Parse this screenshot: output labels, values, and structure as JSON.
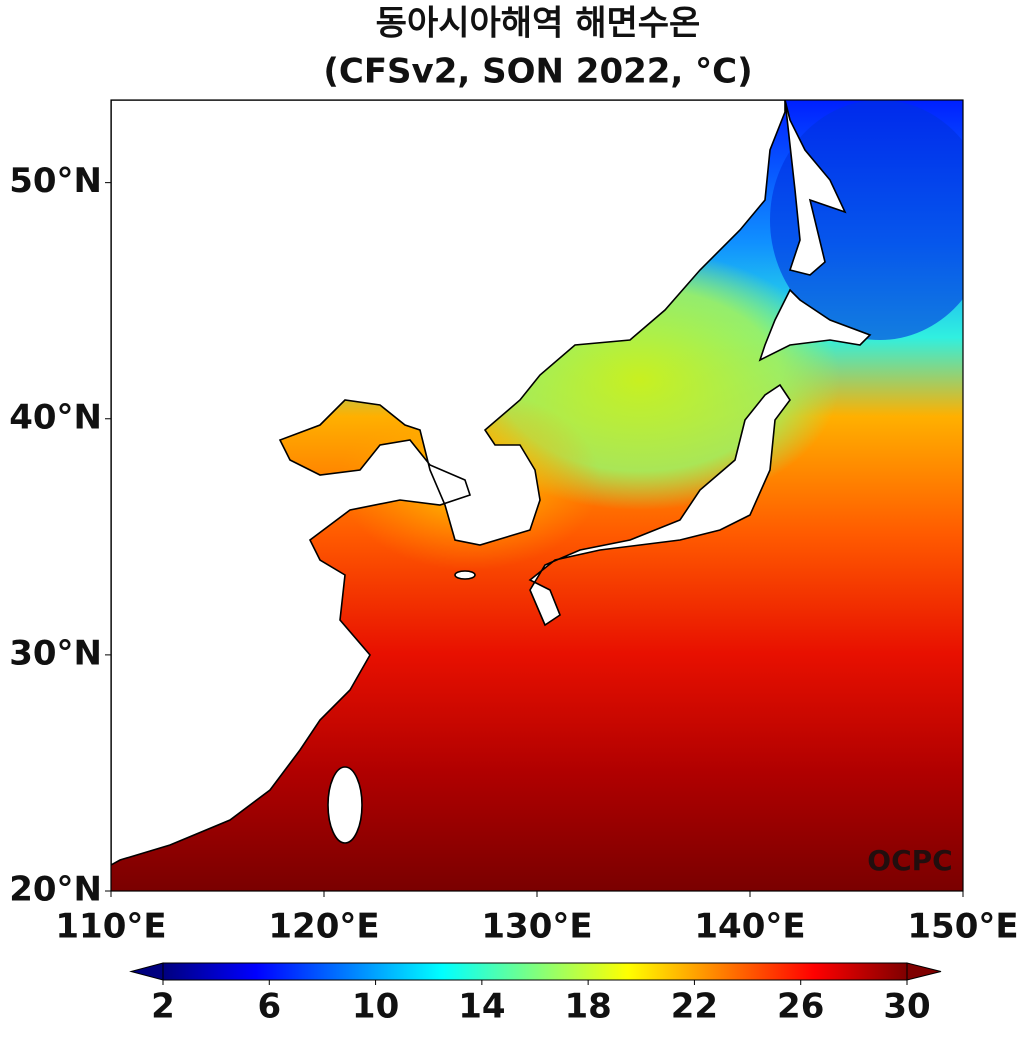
{
  "title": "동아시아해역 해면수온",
  "subtitle": "(CFSv2, SON 2022, °C)",
  "map": {
    "xlim": [
      110,
      150
    ],
    "ylim": [
      20,
      53.5
    ],
    "xticks": [
      {
        "value": 110,
        "label": "110°E"
      },
      {
        "value": 120,
        "label": "120°E"
      },
      {
        "value": 130,
        "label": "130°E"
      },
      {
        "value": 140,
        "label": "140°E"
      },
      {
        "value": 150,
        "label": "150°E"
      }
    ],
    "yticks": [
      {
        "value": 20,
        "label": "20°N"
      },
      {
        "value": 30,
        "label": "30°N"
      },
      {
        "value": 40,
        "label": "40°N"
      },
      {
        "value": 50,
        "label": "50°N"
      }
    ]
  },
  "colorbar": {
    "range": [
      2,
      30
    ],
    "ticks": [
      2,
      6,
      10,
      14,
      18,
      22,
      26,
      30
    ],
    "colors": [
      "#00007f",
      "#0000ff",
      "#007fff",
      "#00ffff",
      "#7fff7f",
      "#ffff00",
      "#ff7f00",
      "#ff0000",
      "#7f0000"
    ]
  },
  "watermark": "OCPC"
}
